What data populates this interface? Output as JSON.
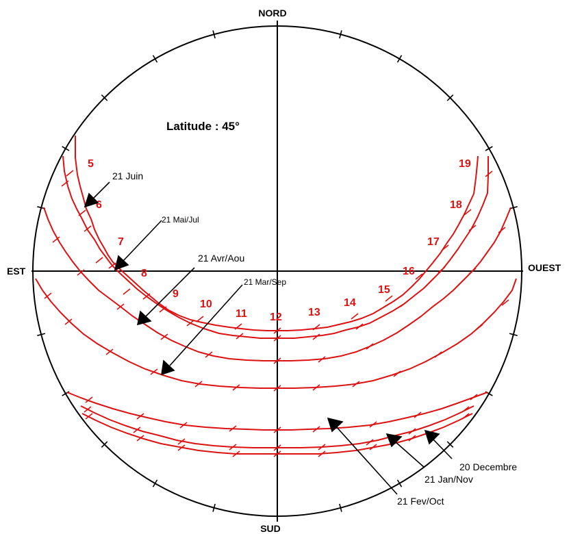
{
  "title": "Latitude : 45°",
  "compass": {
    "north": "NORD",
    "south": "SUD",
    "east": "EST",
    "west": "OUEST"
  },
  "hours": [
    "5",
    "6",
    "7",
    "8",
    "9",
    "10",
    "11",
    "12",
    "13",
    "14",
    "15",
    "16",
    "17",
    "18",
    "19"
  ],
  "curves": [
    {
      "id": "jun",
      "label": "21 Juin"
    },
    {
      "id": "mayjul",
      "label": "21 Mai/Jul"
    },
    {
      "id": "avraou",
      "label": "21 Avr/Aou"
    },
    {
      "id": "marsep",
      "label": "21 Mar/Sep"
    },
    {
      "id": "fevoct",
      "label": "21 Fev/Oct"
    },
    {
      "id": "jannov",
      "label": "21 Jan/Nov"
    },
    {
      "id": "dec",
      "label": "20 Decembre"
    }
  ],
  "colors": {
    "path": "#dd1111",
    "hour_label": "#dd1111",
    "frame": "#000000"
  }
}
